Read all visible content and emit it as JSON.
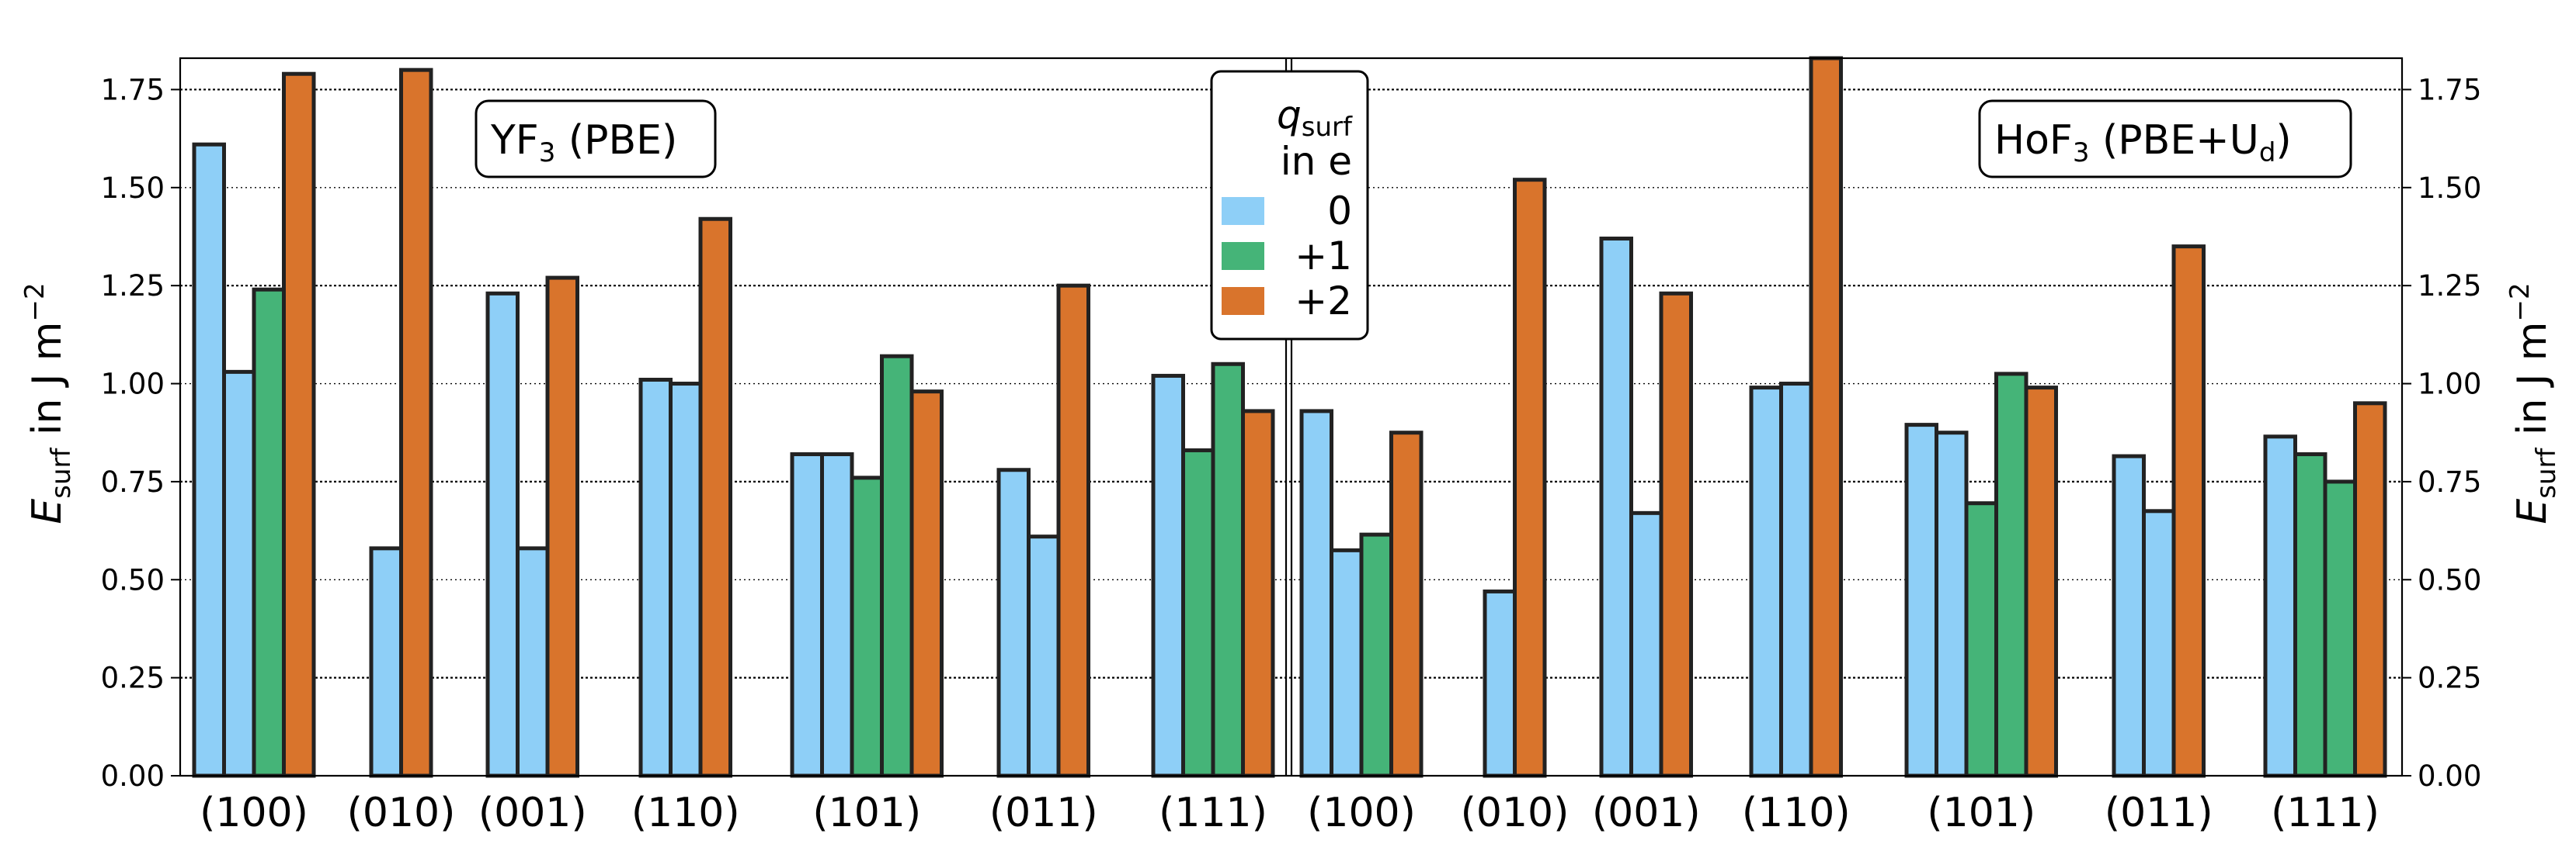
{
  "chart_data": {
    "type": "bar",
    "ylim": [
      0,
      1.83
    ],
    "yticks": [
      "0.00",
      "0.25",
      "0.50",
      "0.75",
      "1.00",
      "1.25",
      "1.50",
      "1.75"
    ],
    "ylabel_left": {
      "symbol": "E",
      "sub": "surf",
      "unit_pre": " in J m",
      "sup": "−2"
    },
    "ylabel_right": {
      "symbol": "E",
      "sub": "surf",
      "unit_pre": " in J m",
      "sup": "−2"
    },
    "legend": {
      "title_symbol": "q",
      "title_sub": "surf",
      "title_line2": "in e",
      "entries": [
        {
          "label": "0",
          "color": "#8ECFF7"
        },
        {
          "label": "+1",
          "color": "#45B478"
        },
        {
          "label": "+2",
          "color": "#D9742C"
        }
      ]
    },
    "panels": [
      {
        "title_base": "YF",
        "title_sub": "3",
        "title_rest": " (PBE)",
        "title_rest_sub": "",
        "title_tail": "",
        "groups": [
          {
            "label": "(100)",
            "bars": [
              {
                "charge": "0",
                "value": 1.61
              },
              {
                "charge": "0",
                "value": 1.03
              },
              {
                "charge": "+1",
                "value": 1.24
              },
              {
                "charge": "+2",
                "value": 1.79
              }
            ]
          },
          {
            "label": "(010)",
            "bars": [
              {
                "charge": "0",
                "value": 0.58
              },
              {
                "charge": "+2",
                "value": 1.8
              }
            ]
          },
          {
            "label": "(001)",
            "bars": [
              {
                "charge": "0",
                "value": 1.23
              },
              {
                "charge": "0",
                "value": 0.58
              },
              {
                "charge": "+2",
                "value": 1.27
              }
            ]
          },
          {
            "label": "(110)",
            "bars": [
              {
                "charge": "0",
                "value": 1.01
              },
              {
                "charge": "0",
                "value": 1.0
              },
              {
                "charge": "+2",
                "value": 1.42
              }
            ]
          },
          {
            "label": "(101)",
            "bars": [
              {
                "charge": "0",
                "value": 0.82
              },
              {
                "charge": "0",
                "value": 0.82
              },
              {
                "charge": "+1",
                "value": 0.76
              },
              {
                "charge": "+1",
                "value": 1.07
              },
              {
                "charge": "+2",
                "value": 0.98
              }
            ]
          },
          {
            "label": "(011)",
            "bars": [
              {
                "charge": "0",
                "value": 0.78
              },
              {
                "charge": "0",
                "value": 0.61
              },
              {
                "charge": "+2",
                "value": 1.25
              }
            ]
          },
          {
            "label": "(111)",
            "bars": [
              {
                "charge": "0",
                "value": 1.02
              },
              {
                "charge": "+1",
                "value": 0.83
              },
              {
                "charge": "+1",
                "value": 1.05
              },
              {
                "charge": "+2",
                "value": 0.93
              }
            ]
          }
        ]
      },
      {
        "title_base": "HoF",
        "title_sub": "3",
        "title_rest": " (PBE+U",
        "title_rest_sub": "d",
        "title_tail": ")",
        "groups": [
          {
            "label": "(100)",
            "bars": [
              {
                "charge": "0",
                "value": 0.93
              },
              {
                "charge": "0",
                "value": 0.575
              },
              {
                "charge": "+1",
                "value": 0.615
              },
              {
                "charge": "+2",
                "value": 0.875
              }
            ]
          },
          {
            "label": "(010)",
            "bars": [
              {
                "charge": "0",
                "value": 0.47
              },
              {
                "charge": "+2",
                "value": 1.52
              }
            ]
          },
          {
            "label": "(001)",
            "bars": [
              {
                "charge": "0",
                "value": 1.37
              },
              {
                "charge": "0",
                "value": 0.67
              },
              {
                "charge": "+2",
                "value": 1.23
              }
            ]
          },
          {
            "label": "(110)",
            "bars": [
              {
                "charge": "0",
                "value": 0.99
              },
              {
                "charge": "0",
                "value": 1.0
              },
              {
                "charge": "+2",
                "value": 1.83
              }
            ]
          },
          {
            "label": "(101)",
            "bars": [
              {
                "charge": "0",
                "value": 0.895
              },
              {
                "charge": "0",
                "value": 0.875
              },
              {
                "charge": "+1",
                "value": 0.695
              },
              {
                "charge": "+1",
                "value": 1.025
              },
              {
                "charge": "+2",
                "value": 0.99
              }
            ]
          },
          {
            "label": "(011)",
            "bars": [
              {
                "charge": "0",
                "value": 0.815
              },
              {
                "charge": "0",
                "value": 0.675
              },
              {
                "charge": "+2",
                "value": 1.35
              }
            ]
          },
          {
            "label": "(111)",
            "bars": [
              {
                "charge": "0",
                "value": 0.865
              },
              {
                "charge": "+1",
                "value": 0.82
              },
              {
                "charge": "+1",
                "value": 0.75
              },
              {
                "charge": "+2",
                "value": 0.95
              }
            ]
          }
        ]
      }
    ]
  }
}
